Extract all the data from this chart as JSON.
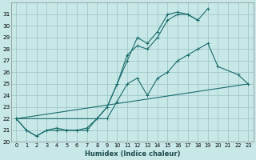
{
  "xlabel": "Humidex (Indice chaleur)",
  "bg_color": "#c8e8e8",
  "grid_color": "#a0c8c8",
  "line_color": "#1a6b6b",
  "xlim": [
    -0.5,
    23.5
  ],
  "ylim": [
    20.0,
    32.0
  ],
  "yticks": [
    20,
    21,
    22,
    23,
    24,
    25,
    26,
    27,
    28,
    29,
    30,
    31
  ],
  "xticks": [
    0,
    1,
    2,
    3,
    4,
    5,
    6,
    7,
    8,
    9,
    10,
    11,
    12,
    13,
    14,
    15,
    16,
    17,
    18,
    19,
    20,
    21,
    22,
    23
  ],
  "series1_x": [
    0,
    1,
    2,
    3,
    4,
    5,
    6,
    7,
    8,
    9,
    10,
    11,
    12,
    13,
    14,
    15,
    16,
    17,
    18,
    19
  ],
  "series1_y": [
    22,
    21,
    20.5,
    21,
    21.2,
    21,
    21,
    21.2,
    22,
    23,
    25,
    27,
    29,
    28.5,
    29.5,
    31,
    31.2,
    31,
    30.5,
    31.5
  ],
  "series2_x": [
    0,
    1,
    2,
    3,
    4,
    5,
    6,
    7,
    8,
    9,
    10,
    11,
    12,
    13,
    14,
    15,
    16,
    17,
    18
  ],
  "series2_y": [
    22,
    21,
    20.5,
    21,
    21,
    21,
    21,
    21,
    22,
    23,
    25,
    27.5,
    28.3,
    28,
    29,
    30.5,
    31,
    31,
    30.5
  ],
  "series3_x": [
    0,
    9,
    10,
    11,
    12,
    13,
    14,
    15,
    16,
    17,
    18,
    19,
    20,
    22,
    23
  ],
  "series3_y": [
    22,
    22,
    23.5,
    25,
    25.5,
    24,
    25.5,
    26,
    27,
    27.5,
    28,
    28.5,
    26.5,
    25.8,
    25
  ],
  "series4_x": [
    0,
    23
  ],
  "series4_y": [
    22,
    25
  ]
}
